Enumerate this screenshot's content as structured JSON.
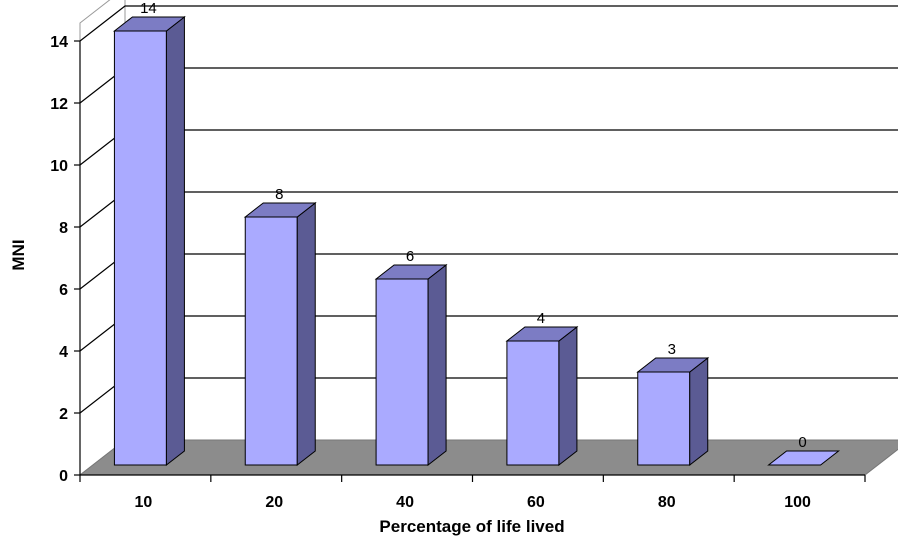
{
  "chart_data": {
    "type": "bar",
    "categories": [
      "10",
      "20",
      "40",
      "60",
      "80",
      "100"
    ],
    "values": [
      14,
      8,
      6,
      4,
      3,
      0
    ],
    "data_labels": [
      "14",
      "8",
      "6",
      "4",
      "3",
      "0"
    ],
    "xlabel": "Percentage of life lived",
    "ylabel": "MNI",
    "ylim": [
      0,
      14
    ],
    "yticks": [
      "0",
      "2",
      "4",
      "6",
      "8",
      "10",
      "12",
      "14"
    ],
    "grid": true,
    "legend": "none",
    "style": "3d-column",
    "colors": {
      "bar_front": "#aaaaff",
      "bar_side": "#5b5b94",
      "bar_top": "#7c7cc4",
      "floor": "#8c8c8c",
      "gridline": "#000000"
    }
  }
}
